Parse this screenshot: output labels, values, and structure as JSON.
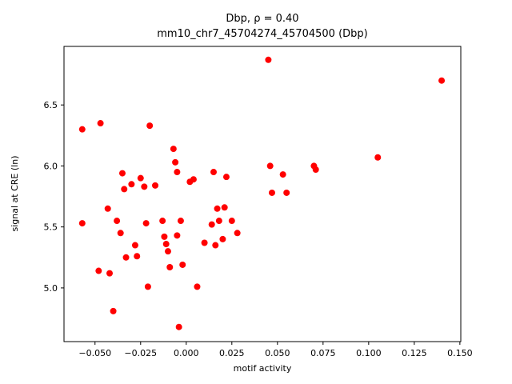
{
  "title_line1": "Dbp, ρ = 0.40",
  "title_line2": "mm10_chr7_45704274_45704500 (Dbp)",
  "chart_data": {
    "type": "scatter",
    "title": "Dbp, ρ = 0.40 — mm10_chr7_45704274_45704500 (Dbp)",
    "xlabel": "motif activity",
    "ylabel": "signal at CRE (ln)",
    "xlim": [
      -0.067,
      0.1505
    ],
    "ylim": [
      4.56,
      6.98
    ],
    "grid": false,
    "legend": "none",
    "marker_color": "#ff0000",
    "marker_radius": 4,
    "xticks": [
      {
        "v": -0.05,
        "label": "−0.050"
      },
      {
        "v": -0.025,
        "label": "−0.025"
      },
      {
        "v": 0.0,
        "label": "0.000"
      },
      {
        "v": 0.025,
        "label": "0.025"
      },
      {
        "v": 0.05,
        "label": "0.050"
      },
      {
        "v": 0.075,
        "label": "0.075"
      },
      {
        "v": 0.1,
        "label": "0.100"
      },
      {
        "v": 0.125,
        "label": "0.125"
      },
      {
        "v": 0.15,
        "label": "0.150"
      }
    ],
    "yticks": [
      {
        "v": 5.0,
        "label": "5.0"
      },
      {
        "v": 5.5,
        "label": "5.5"
      },
      {
        "v": 6.0,
        "label": "6.0"
      },
      {
        "v": 6.5,
        "label": "6.5"
      }
    ],
    "points": [
      [
        -0.057,
        6.3
      ],
      [
        -0.047,
        6.35
      ],
      [
        -0.057,
        5.53
      ],
      [
        -0.048,
        5.14
      ],
      [
        -0.043,
        5.65
      ],
      [
        -0.042,
        5.12
      ],
      [
        -0.04,
        4.81
      ],
      [
        -0.038,
        5.55
      ],
      [
        -0.036,
        5.45
      ],
      [
        -0.035,
        5.94
      ],
      [
        -0.034,
        5.81
      ],
      [
        -0.033,
        5.25
      ],
      [
        -0.03,
        5.85
      ],
      [
        -0.028,
        5.35
      ],
      [
        -0.027,
        5.26
      ],
      [
        -0.025,
        5.9
      ],
      [
        -0.023,
        5.83
      ],
      [
        -0.022,
        5.53
      ],
      [
        -0.021,
        5.01
      ],
      [
        -0.02,
        6.33
      ],
      [
        -0.017,
        5.84
      ],
      [
        -0.013,
        5.55
      ],
      [
        -0.012,
        5.42
      ],
      [
        -0.011,
        5.36
      ],
      [
        -0.01,
        5.3
      ],
      [
        -0.009,
        5.17
      ],
      [
        -0.007,
        6.14
      ],
      [
        -0.006,
        6.03
      ],
      [
        -0.005,
        5.95
      ],
      [
        -0.005,
        5.43
      ],
      [
        -0.004,
        4.68
      ],
      [
        -0.003,
        5.55
      ],
      [
        -0.002,
        5.19
      ],
      [
        0.002,
        5.87
      ],
      [
        0.004,
        5.89
      ],
      [
        0.006,
        5.01
      ],
      [
        0.01,
        5.37
      ],
      [
        0.014,
        5.52
      ],
      [
        0.015,
        5.95
      ],
      [
        0.016,
        5.35
      ],
      [
        0.017,
        5.65
      ],
      [
        0.018,
        5.55
      ],
      [
        0.02,
        5.4
      ],
      [
        0.021,
        5.66
      ],
      [
        0.022,
        5.91
      ],
      [
        0.025,
        5.55
      ],
      [
        0.028,
        5.45
      ],
      [
        0.045,
        6.87
      ],
      [
        0.046,
        6.0
      ],
      [
        0.047,
        5.78
      ],
      [
        0.053,
        5.93
      ],
      [
        0.055,
        5.78
      ],
      [
        0.07,
        6.0
      ],
      [
        0.071,
        5.97
      ],
      [
        0.105,
        6.07
      ],
      [
        0.14,
        6.7
      ]
    ]
  }
}
